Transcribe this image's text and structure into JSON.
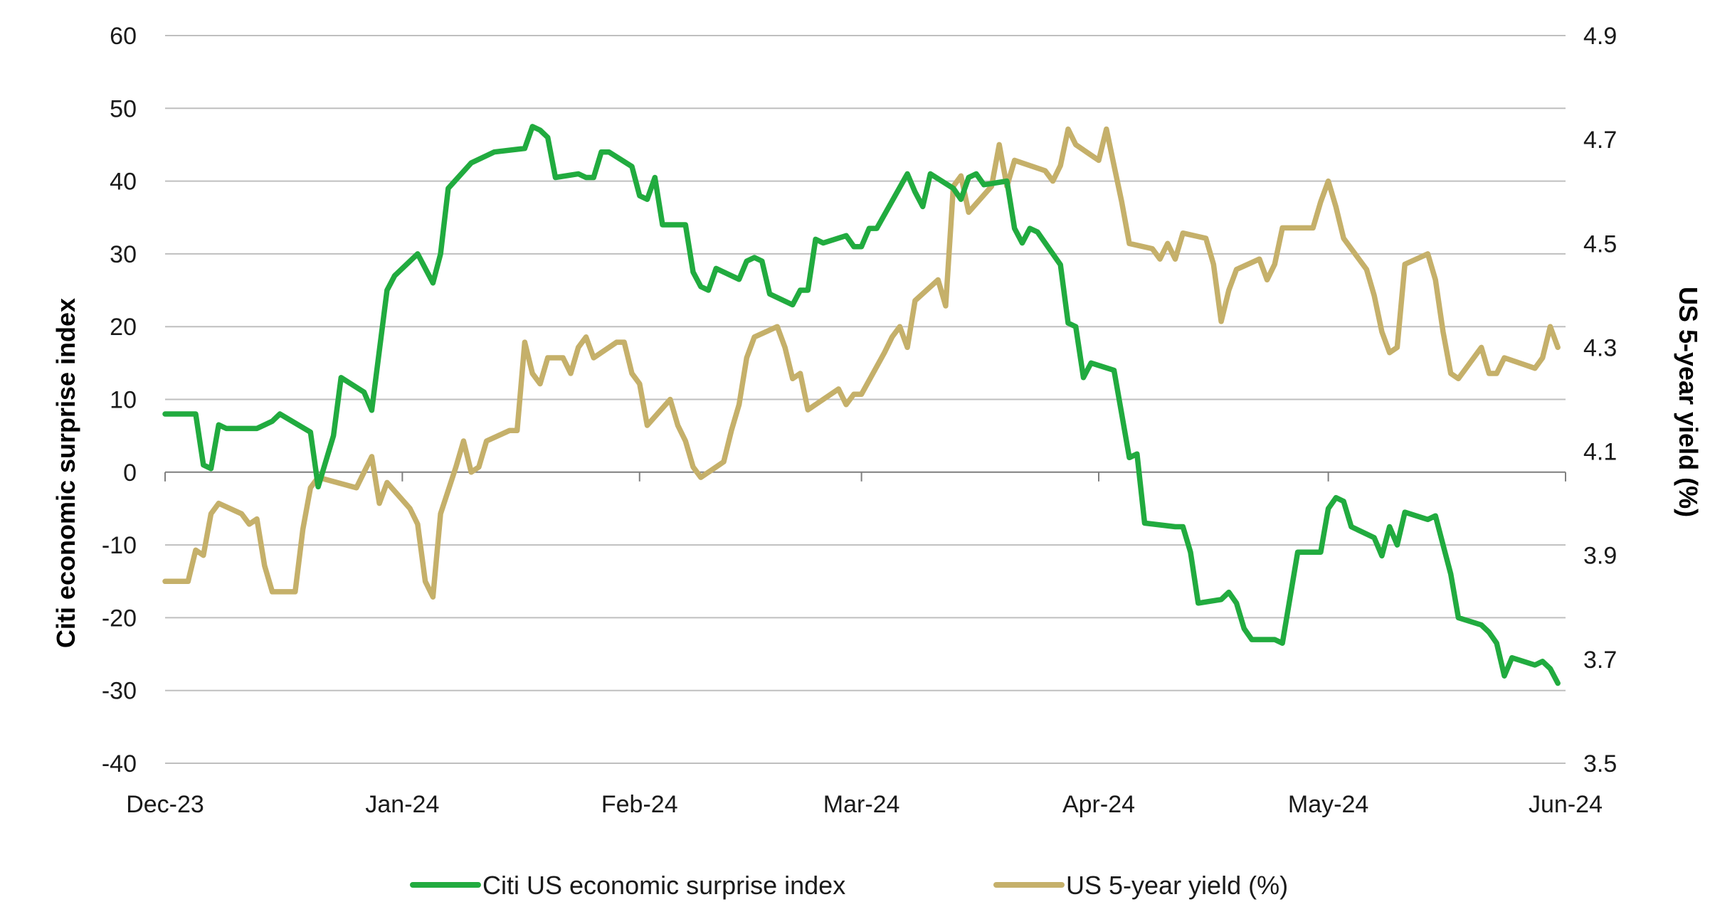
{
  "chart_data": {
    "type": "line",
    "title": "",
    "xlabel": "",
    "ylabel_left": "Citi economic surprise index",
    "ylabel_right": "US 5-year yield (%)",
    "grid": true,
    "legend_position": "bottom",
    "x_tick_labels": [
      "Dec-23",
      "Jan-24",
      "Feb-24",
      "Mar-24",
      "Apr-24",
      "May-24",
      "Jun-24"
    ],
    "x_tick_dates": [
      "2023-12-01",
      "2024-01-01",
      "2024-02-01",
      "2024-03-01",
      "2024-04-01",
      "2024-05-01",
      "2024-06-01"
    ],
    "y_left_lim": [
      -40,
      60
    ],
    "y_left_ticks": [
      "-40",
      "-30",
      "-20",
      "-10",
      "0",
      "10",
      "20",
      "30",
      "40",
      "50",
      "60"
    ],
    "y_right_lim": [
      3.5,
      4.9
    ],
    "y_right_ticks": [
      "3.5",
      "3.7",
      "3.9",
      "4.1",
      "4.3",
      "4.5",
      "4.7",
      "4.9"
    ],
    "colors": {
      "surprise": "#21ab3f",
      "yield": "#c5b06a",
      "grid": "#bfbfbf",
      "axis": "#7f7f7f"
    },
    "series": [
      {
        "name": "Citi US economic surprise index",
        "axis": "left",
        "points": [
          [
            "2023-12-01",
            8
          ],
          [
            "2023-12-05",
            8
          ],
          [
            "2023-12-06",
            1
          ],
          [
            "2023-12-07",
            0.5
          ],
          [
            "2023-12-08",
            6.5
          ],
          [
            "2023-12-09",
            6
          ],
          [
            "2023-12-13",
            6
          ],
          [
            "2023-12-14",
            6.5
          ],
          [
            "2023-12-15",
            7
          ],
          [
            "2023-12-16",
            8
          ],
          [
            "2023-12-20",
            5.5
          ],
          [
            "2023-12-21",
            -2
          ],
          [
            "2023-12-23",
            5
          ],
          [
            "2023-12-24",
            13
          ],
          [
            "2023-12-27",
            11
          ],
          [
            "2023-12-28",
            8.5
          ],
          [
            "2023-12-30",
            25
          ],
          [
            "2023-12-31",
            27
          ],
          [
            "2024-01-03",
            30
          ],
          [
            "2024-01-05",
            26
          ],
          [
            "2024-01-06",
            30
          ],
          [
            "2024-01-07",
            39
          ],
          [
            "2024-01-10",
            42.5
          ],
          [
            "2024-01-13",
            44
          ],
          [
            "2024-01-17",
            44.5
          ],
          [
            "2024-01-18",
            47.5
          ],
          [
            "2024-01-19",
            47
          ],
          [
            "2024-01-20",
            46
          ],
          [
            "2024-01-21",
            40.5
          ],
          [
            "2024-01-24",
            41
          ],
          [
            "2024-01-25",
            40.5
          ],
          [
            "2024-01-26",
            40.5
          ],
          [
            "2024-01-27",
            44
          ],
          [
            "2024-01-28",
            44
          ],
          [
            "2024-01-31",
            42
          ],
          [
            "2024-02-01",
            38
          ],
          [
            "2024-02-02",
            37.5
          ],
          [
            "2024-02-03",
            40.5
          ],
          [
            "2024-02-04",
            34
          ],
          [
            "2024-02-07",
            34
          ],
          [
            "2024-02-08",
            27.5
          ],
          [
            "2024-02-09",
            25.5
          ],
          [
            "2024-02-10",
            25
          ],
          [
            "2024-02-11",
            28
          ],
          [
            "2024-02-14",
            26.5
          ],
          [
            "2024-02-15",
            29
          ],
          [
            "2024-02-16",
            29.5
          ],
          [
            "2024-02-17",
            29
          ],
          [
            "2024-02-18",
            24.5
          ],
          [
            "2024-02-21",
            23
          ],
          [
            "2024-02-22",
            25
          ],
          [
            "2024-02-23",
            25
          ],
          [
            "2024-02-24",
            32
          ],
          [
            "2024-02-25",
            31.5
          ],
          [
            "2024-02-28",
            32.5
          ],
          [
            "2024-02-29",
            31
          ],
          [
            "2024-03-01",
            31
          ],
          [
            "2024-03-02",
            33.5
          ],
          [
            "2024-03-03",
            33.5
          ],
          [
            "2024-03-07",
            41
          ],
          [
            "2024-03-08",
            38.5
          ],
          [
            "2024-03-09",
            36.5
          ],
          [
            "2024-03-10",
            41
          ],
          [
            "2024-03-13",
            39
          ],
          [
            "2024-03-14",
            37.5
          ],
          [
            "2024-03-15",
            40.5
          ],
          [
            "2024-03-16",
            41
          ],
          [
            "2024-03-17",
            39.5
          ],
          [
            "2024-03-20",
            40
          ],
          [
            "2024-03-21",
            33.5
          ],
          [
            "2024-03-22",
            31.5
          ],
          [
            "2024-03-23",
            33.5
          ],
          [
            "2024-03-24",
            33
          ],
          [
            "2024-03-27",
            28.5
          ],
          [
            "2024-03-28",
            20.5
          ],
          [
            "2024-03-29",
            20
          ],
          [
            "2024-03-30",
            13
          ],
          [
            "2024-03-31",
            15
          ],
          [
            "2024-04-03",
            14
          ],
          [
            "2024-04-04",
            8
          ],
          [
            "2024-04-05",
            2
          ],
          [
            "2024-04-06",
            2.5
          ],
          [
            "2024-04-07",
            -7
          ],
          [
            "2024-04-11",
            -7.5
          ],
          [
            "2024-04-12",
            -7.5
          ],
          [
            "2024-04-13",
            -11
          ],
          [
            "2024-04-14",
            -18
          ],
          [
            "2024-04-17",
            -17.5
          ],
          [
            "2024-04-18",
            -16.5
          ],
          [
            "2024-04-19",
            -18
          ],
          [
            "2024-04-20",
            -21.5
          ],
          [
            "2024-04-21",
            -23
          ],
          [
            "2024-04-24",
            -23
          ],
          [
            "2024-04-25",
            -23.5
          ],
          [
            "2024-04-27",
            -11
          ],
          [
            "2024-04-30",
            -11
          ],
          [
            "2024-05-01",
            -5
          ],
          [
            "2024-05-02",
            -3.5
          ],
          [
            "2024-05-03",
            -4
          ],
          [
            "2024-05-04",
            -7.5
          ],
          [
            "2024-05-07",
            -9
          ],
          [
            "2024-05-08",
            -11.5
          ],
          [
            "2024-05-09",
            -7.5
          ],
          [
            "2024-05-10",
            -10
          ],
          [
            "2024-05-11",
            -5.5
          ],
          [
            "2024-05-14",
            -6.5
          ],
          [
            "2024-05-15",
            -6
          ],
          [
            "2024-05-16",
            -10
          ],
          [
            "2024-05-17",
            -14
          ],
          [
            "2024-05-18",
            -20
          ],
          [
            "2024-05-21",
            -21
          ],
          [
            "2024-05-22",
            -22
          ],
          [
            "2024-05-23",
            -23.5
          ],
          [
            "2024-05-24",
            -28
          ],
          [
            "2024-05-25",
            -25.5
          ],
          [
            "2024-05-28",
            -26.5
          ],
          [
            "2024-05-29",
            -26
          ],
          [
            "2024-05-30",
            -27
          ],
          [
            "2024-05-31",
            -29
          ]
        ]
      },
      {
        "name": "US 5-year yield (%)",
        "axis": "right",
        "points": [
          [
            "2023-12-01",
            3.85
          ],
          [
            "2023-12-04",
            3.85
          ],
          [
            "2023-12-05",
            3.91
          ],
          [
            "2023-12-06",
            3.9
          ],
          [
            "2023-12-07",
            3.98
          ],
          [
            "2023-12-08",
            4.0
          ],
          [
            "2023-12-11",
            3.98
          ],
          [
            "2023-12-12",
            3.96
          ],
          [
            "2023-12-13",
            3.97
          ],
          [
            "2023-12-14",
            3.88
          ],
          [
            "2023-12-15",
            3.83
          ],
          [
            "2023-12-18",
            3.83
          ],
          [
            "2023-12-19",
            3.95
          ],
          [
            "2023-12-20",
            4.03
          ],
          [
            "2023-12-21",
            4.05
          ],
          [
            "2023-12-26",
            4.03
          ],
          [
            "2023-12-27",
            4.06
          ],
          [
            "2023-12-28",
            4.09
          ],
          [
            "2023-12-29",
            4.0
          ],
          [
            "2023-12-30",
            4.04
          ],
          [
            "2024-01-02",
            3.99
          ],
          [
            "2024-01-03",
            3.96
          ],
          [
            "2024-01-04",
            3.85
          ],
          [
            "2024-01-05",
            3.82
          ],
          [
            "2024-01-06",
            3.98
          ],
          [
            "2024-01-08",
            4.07
          ],
          [
            "2024-01-09",
            4.12
          ],
          [
            "2024-01-10",
            4.06
          ],
          [
            "2024-01-11",
            4.07
          ],
          [
            "2024-01-12",
            4.12
          ],
          [
            "2024-01-15",
            4.14
          ],
          [
            "2024-01-16",
            4.14
          ],
          [
            "2024-01-17",
            4.31
          ],
          [
            "2024-01-18",
            4.25
          ],
          [
            "2024-01-19",
            4.23
          ],
          [
            "2024-01-20",
            4.28
          ],
          [
            "2024-01-22",
            4.28
          ],
          [
            "2024-01-23",
            4.25
          ],
          [
            "2024-01-24",
            4.3
          ],
          [
            "2024-01-25",
            4.32
          ],
          [
            "2024-01-26",
            4.28
          ],
          [
            "2024-01-29",
            4.31
          ],
          [
            "2024-01-30",
            4.31
          ],
          [
            "2024-01-31",
            4.25
          ],
          [
            "2024-02-01",
            4.23
          ],
          [
            "2024-02-02",
            4.15
          ],
          [
            "2024-02-05",
            4.2
          ],
          [
            "2024-02-06",
            4.15
          ],
          [
            "2024-02-07",
            4.12
          ],
          [
            "2024-02-08",
            4.07
          ],
          [
            "2024-02-09",
            4.05
          ],
          [
            "2024-02-12",
            4.08
          ],
          [
            "2024-02-13",
            4.14
          ],
          [
            "2024-02-14",
            4.19
          ],
          [
            "2024-02-15",
            4.28
          ],
          [
            "2024-02-16",
            4.32
          ],
          [
            "2024-02-19",
            4.34
          ],
          [
            "2024-02-20",
            4.3
          ],
          [
            "2024-02-21",
            4.24
          ],
          [
            "2024-02-22",
            4.25
          ],
          [
            "2024-02-23",
            4.18
          ],
          [
            "2024-02-26",
            4.21
          ],
          [
            "2024-02-27",
            4.22
          ],
          [
            "2024-02-28",
            4.19
          ],
          [
            "2024-02-29",
            4.21
          ],
          [
            "2024-03-01",
            4.21
          ],
          [
            "2024-03-04",
            4.29
          ],
          [
            "2024-03-05",
            4.32
          ],
          [
            "2024-03-06",
            4.34
          ],
          [
            "2024-03-07",
            4.3
          ],
          [
            "2024-03-08",
            4.39
          ],
          [
            "2024-03-11",
            4.43
          ],
          [
            "2024-03-12",
            4.38
          ],
          [
            "2024-03-13",
            4.61
          ],
          [
            "2024-03-14",
            4.63
          ],
          [
            "2024-03-15",
            4.56
          ],
          [
            "2024-03-18",
            4.61
          ],
          [
            "2024-03-19",
            4.69
          ],
          [
            "2024-03-20",
            4.61
          ],
          [
            "2024-03-21",
            4.66
          ],
          [
            "2024-03-25",
            4.64
          ],
          [
            "2024-03-26",
            4.62
          ],
          [
            "2024-03-27",
            4.65
          ],
          [
            "2024-03-28",
            4.72
          ],
          [
            "2024-03-29",
            4.69
          ],
          [
            "2024-04-01",
            4.66
          ],
          [
            "2024-04-02",
            4.72
          ],
          [
            "2024-04-03",
            4.65
          ],
          [
            "2024-04-04",
            4.58
          ],
          [
            "2024-04-05",
            4.5
          ],
          [
            "2024-04-08",
            4.49
          ],
          [
            "2024-04-09",
            4.47
          ],
          [
            "2024-04-10",
            4.5
          ],
          [
            "2024-04-11",
            4.47
          ],
          [
            "2024-04-12",
            4.52
          ],
          [
            "2024-04-15",
            4.51
          ],
          [
            "2024-04-16",
            4.46
          ],
          [
            "2024-04-17",
            4.35
          ],
          [
            "2024-04-18",
            4.41
          ],
          [
            "2024-04-19",
            4.45
          ],
          [
            "2024-04-22",
            4.47
          ],
          [
            "2024-04-23",
            4.43
          ],
          [
            "2024-04-24",
            4.46
          ],
          [
            "2024-04-25",
            4.53
          ],
          [
            "2024-04-26",
            4.53
          ],
          [
            "2024-04-29",
            4.53
          ],
          [
            "2024-04-30",
            4.58
          ],
          [
            "2024-05-01",
            4.62
          ],
          [
            "2024-05-02",
            4.57
          ],
          [
            "2024-05-03",
            4.51
          ],
          [
            "2024-05-06",
            4.45
          ],
          [
            "2024-05-07",
            4.4
          ],
          [
            "2024-05-08",
            4.33
          ],
          [
            "2024-05-09",
            4.29
          ],
          [
            "2024-05-10",
            4.3
          ],
          [
            "2024-05-11",
            4.46
          ],
          [
            "2024-05-14",
            4.48
          ],
          [
            "2024-05-15",
            4.43
          ],
          [
            "2024-05-16",
            4.33
          ],
          [
            "2024-05-17",
            4.25
          ],
          [
            "2024-05-18",
            4.24
          ],
          [
            "2024-05-21",
            4.3
          ],
          [
            "2024-05-22",
            4.25
          ],
          [
            "2024-05-23",
            4.25
          ],
          [
            "2024-05-24",
            4.28
          ],
          [
            "2024-05-28",
            4.26
          ],
          [
            "2024-05-29",
            4.28
          ],
          [
            "2024-05-30",
            4.34
          ],
          [
            "2024-05-31",
            4.3
          ]
        ]
      }
    ]
  }
}
